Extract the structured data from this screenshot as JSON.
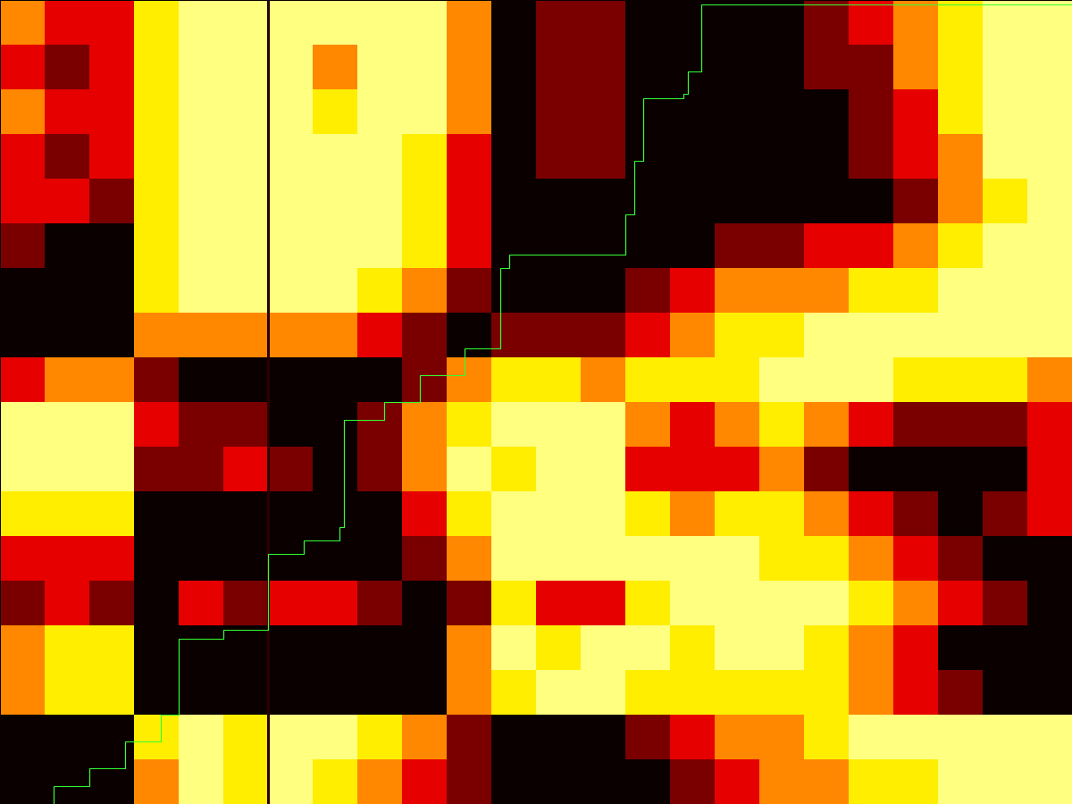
{
  "chart_data": {
    "type": "heatmap",
    "tick_labels": false,
    "xlim": [
      0,
      24
    ],
    "ylim": [
      0,
      18
    ],
    "levels": [
      0,
      1,
      2,
      3,
      4,
      5
    ],
    "palette": [
      "#0a0000",
      "#7a0000",
      "#e60000",
      "#ff8800",
      "#ffee00",
      "#ffff80"
    ],
    "cells": [
      [
        3,
        2,
        2,
        4,
        5,
        5,
        5,
        5,
        5,
        5,
        3,
        0,
        1,
        1,
        0,
        0,
        0,
        0,
        1,
        2,
        3,
        4,
        5,
        5
      ],
      [
        2,
        1,
        2,
        4,
        5,
        5,
        5,
        3,
        5,
        5,
        3,
        0,
        1,
        1,
        0,
        0,
        0,
        0,
        1,
        1,
        3,
        4,
        5,
        5
      ],
      [
        3,
        2,
        2,
        4,
        5,
        5,
        5,
        4,
        5,
        5,
        3,
        0,
        1,
        1,
        0,
        0,
        0,
        0,
        0,
        1,
        2,
        4,
        5,
        5
      ],
      [
        2,
        1,
        2,
        4,
        5,
        5,
        5,
        5,
        5,
        4,
        2,
        0,
        1,
        1,
        0,
        0,
        0,
        0,
        0,
        1,
        2,
        3,
        5,
        5
      ],
      [
        2,
        2,
        1,
        4,
        5,
        5,
        5,
        5,
        5,
        4,
        2,
        0,
        0,
        0,
        0,
        0,
        0,
        0,
        0,
        0,
        1,
        3,
        4,
        5
      ],
      [
        1,
        0,
        0,
        4,
        5,
        5,
        5,
        5,
        5,
        4,
        2,
        0,
        0,
        0,
        0,
        0,
        1,
        1,
        2,
        2,
        3,
        4,
        5,
        5
      ],
      [
        0,
        0,
        0,
        4,
        5,
        5,
        5,
        5,
        4,
        3,
        1,
        0,
        0,
        0,
        1,
        2,
        3,
        3,
        3,
        4,
        4,
        5,
        5,
        5
      ],
      [
        0,
        0,
        0,
        3,
        3,
        3,
        3,
        3,
        2,
        1,
        0,
        1,
        1,
        1,
        2,
        3,
        4,
        4,
        5,
        5,
        5,
        5,
        5,
        5
      ],
      [
        2,
        3,
        3,
        1,
        0,
        0,
        0,
        0,
        0,
        1,
        3,
        4,
        4,
        3,
        4,
        4,
        4,
        5,
        5,
        5,
        4,
        4,
        4,
        3
      ],
      [
        5,
        5,
        5,
        2,
        1,
        1,
        0,
        0,
        1,
        3,
        4,
        5,
        5,
        5,
        3,
        2,
        3,
        4,
        3,
        2,
        1,
        1,
        1,
        2
      ],
      [
        5,
        5,
        5,
        1,
        1,
        2,
        1,
        0,
        1,
        3,
        5,
        4,
        5,
        5,
        2,
        2,
        2,
        3,
        1,
        0,
        0,
        0,
        0,
        2
      ],
      [
        4,
        4,
        4,
        0,
        0,
        0,
        0,
        0,
        0,
        2,
        4,
        5,
        5,
        5,
        4,
        3,
        4,
        4,
        3,
        2,
        1,
        0,
        1,
        2
      ],
      [
        2,
        2,
        2,
        0,
        0,
        0,
        0,
        0,
        0,
        1,
        3,
        5,
        5,
        5,
        5,
        5,
        5,
        4,
        4,
        3,
        2,
        1,
        0,
        0
      ],
      [
        1,
        2,
        1,
        0,
        2,
        1,
        2,
        2,
        1,
        0,
        1,
        4,
        2,
        2,
        4,
        5,
        5,
        5,
        5,
        4,
        3,
        2,
        1,
        0
      ],
      [
        3,
        4,
        4,
        0,
        0,
        0,
        0,
        0,
        0,
        0,
        3,
        5,
        4,
        5,
        5,
        4,
        5,
        5,
        4,
        3,
        2,
        0,
        0,
        0
      ],
      [
        3,
        4,
        4,
        0,
        0,
        0,
        0,
        0,
        0,
        0,
        3,
        4,
        5,
        5,
        4,
        4,
        4,
        4,
        4,
        3,
        2,
        1,
        0,
        0
      ],
      [
        0,
        0,
        0,
        4,
        5,
        4,
        5,
        5,
        4,
        3,
        1,
        0,
        0,
        0,
        1,
        2,
        3,
        3,
        4,
        5,
        5,
        5,
        5,
        5
      ],
      [
        0,
        0,
        0,
        3,
        5,
        4,
        5,
        4,
        3,
        2,
        1,
        0,
        0,
        0,
        0,
        1,
        2,
        3,
        3,
        4,
        4,
        5,
        5,
        5
      ]
    ],
    "path": {
      "color": "#33ff33",
      "x": [
        0,
        1.2,
        2,
        2.8,
        3.6,
        4,
        5,
        6,
        6,
        6.8,
        7.6,
        7.7,
        8.6,
        9.4,
        10.4,
        11.2,
        11.4,
        13.7,
        14,
        14.2,
        14.4,
        15.3,
        15.4,
        15.7,
        15.7,
        24
      ],
      "y": [
        18,
        17.6,
        17.2,
        16.6,
        16,
        14.3,
        14.1,
        13.8,
        12.4,
        12.1,
        11.8,
        9.4,
        9,
        8.4,
        7.8,
        6,
        5.7,
        5.7,
        4.8,
        3.6,
        2.2,
        2.1,
        1.6,
        0.4,
        0.1,
        0.06
      ]
    },
    "rule": {
      "x": 6,
      "color": "#2a0000"
    }
  }
}
